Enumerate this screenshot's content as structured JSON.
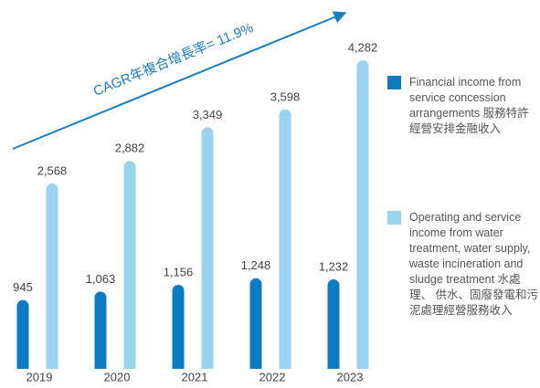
{
  "chart_data": {
    "type": "bar",
    "annotation": "CAGR年複合增長率= 11.9%",
    "categories": [
      "2019",
      "2020",
      "2021",
      "2022",
      "2023"
    ],
    "series": [
      {
        "name": "Financial income from service concession arrangements 服務特許經營安排金融收入",
        "color": "#0a7cc4",
        "values": [
          945,
          1063,
          1156,
          1248,
          1232
        ],
        "value_labels": [
          "945",
          "1,063",
          "1,156",
          "1,248",
          "1,232"
        ]
      },
      {
        "name": "Operating and service income from water treatment, water supply, waste incineration and sludge treatment 水處理、 供水、固廢發電和污泥處理經營服務收入",
        "color": "#99d3ef",
        "values": [
          2568,
          2882,
          3349,
          3598,
          4282
        ],
        "value_labels": [
          "2,568",
          "2,882",
          "3,349",
          "3,598",
          "4,282"
        ]
      }
    ]
  }
}
